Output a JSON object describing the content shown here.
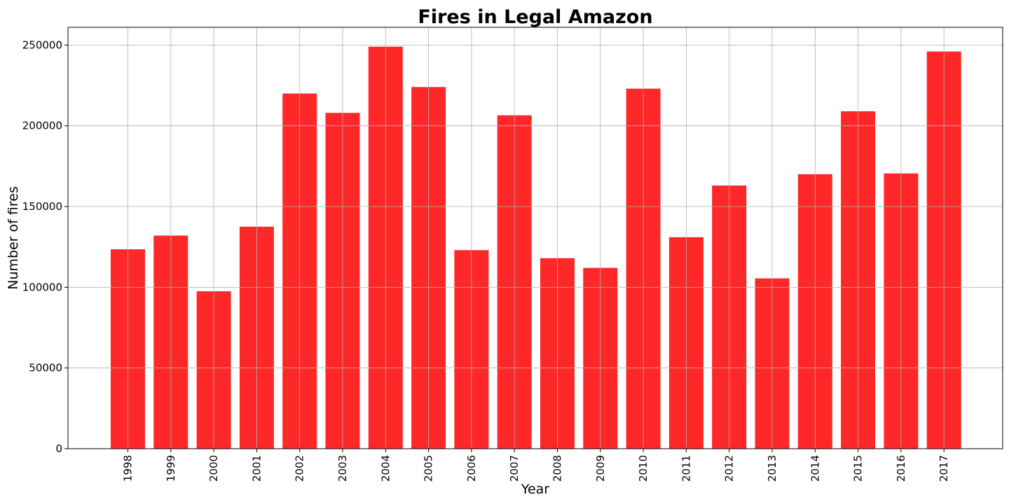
{
  "chart_data": {
    "type": "bar",
    "title": "Fires in Legal Amazon",
    "xlabel": "Year",
    "ylabel": "Number of fires",
    "categories": [
      "1998",
      "1999",
      "2000",
      "2001",
      "2002",
      "2003",
      "2004",
      "2005",
      "2006",
      "2007",
      "2008",
      "2009",
      "2010",
      "2011",
      "2012",
      "2013",
      "2014",
      "2015",
      "2016",
      "2017"
    ],
    "values": [
      123500,
      132000,
      97500,
      137500,
      220000,
      208000,
      249000,
      224000,
      123000,
      206500,
      118000,
      112000,
      223000,
      131000,
      163000,
      105500,
      170000,
      209000,
      170500,
      246000
    ],
    "ylim": [
      0,
      261000
    ],
    "yticks": [
      0,
      50000,
      100000,
      150000,
      200000,
      250000
    ],
    "grid": true,
    "bar_color": "#ff2828"
  }
}
